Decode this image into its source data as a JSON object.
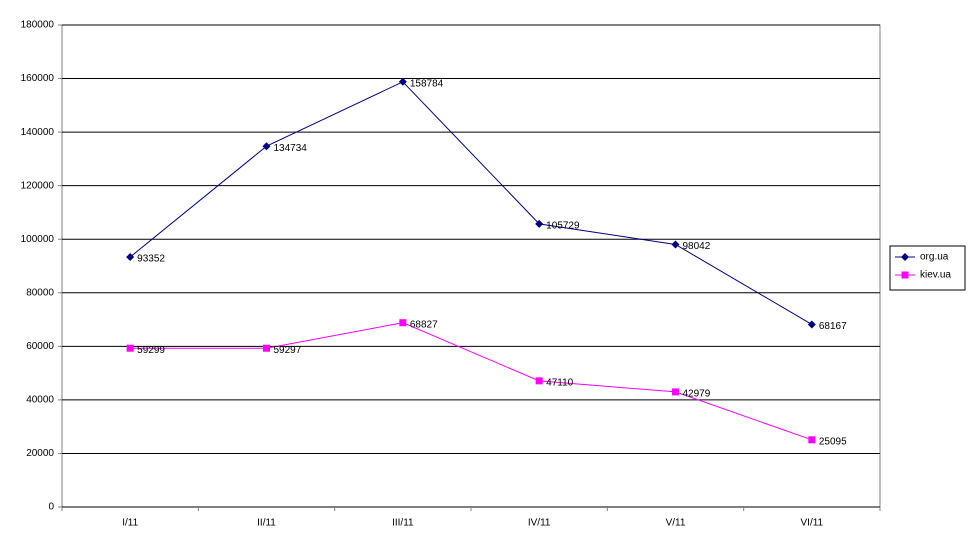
{
  "chart_data": {
    "type": "line",
    "categories": [
      "I/11",
      "II/11",
      "III/11",
      "IV/11",
      "V/11",
      "VI/11"
    ],
    "series": [
      {
        "name": "org.ua",
        "color": "#000080",
        "marker": "diamond",
        "values": [
          93352,
          134734,
          158784,
          105729,
          98042,
          68167
        ]
      },
      {
        "name": "kiev.ua",
        "color": "#ff00ff",
        "marker": "square",
        "values": [
          59299,
          59297,
          68827,
          47110,
          42979,
          25095
        ]
      }
    ],
    "ylim": [
      0,
      180000
    ],
    "yticks": [
      0,
      20000,
      40000,
      60000,
      80000,
      100000,
      120000,
      140000,
      160000,
      180000
    ],
    "grid": true,
    "data_labels": true,
    "legend": "right"
  }
}
